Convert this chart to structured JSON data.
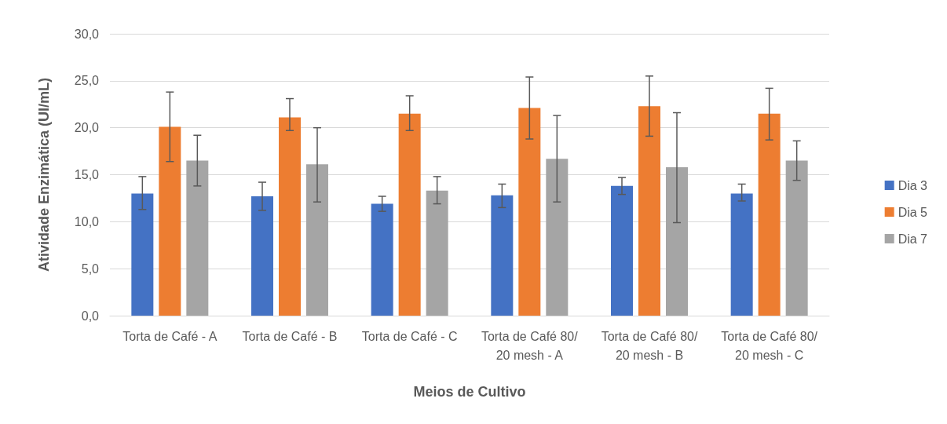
{
  "chart_data": {
    "type": "bar",
    "xlabel": "Meios de Cultivo",
    "ylabel": "Atividade Enzimática (UI/mL)",
    "categories": [
      "Torta de Café - A",
      "Torta de Café - B",
      "Torta de Café - C",
      "Torta de Café 80/20 mesh - A",
      "Torta de Café 80/20 mesh - B",
      "Torta de Café 80/20 mesh - C"
    ],
    "series": [
      {
        "name": "Dia 3",
        "color": "#4472c4",
        "values": [
          13.0,
          12.7,
          11.9,
          12.8,
          13.8,
          13.0
        ],
        "errors": [
          [
            11.3,
            14.8
          ],
          [
            11.2,
            14.2
          ],
          [
            11.1,
            12.7
          ],
          [
            11.5,
            14.0
          ],
          [
            12.9,
            14.7
          ],
          [
            12.2,
            14.0
          ]
        ]
      },
      {
        "name": "Dia 5",
        "color": "#ed7d31",
        "values": [
          20.1,
          21.1,
          21.5,
          22.1,
          22.3,
          21.5
        ],
        "errors": [
          [
            16.4,
            23.8
          ],
          [
            19.7,
            23.1
          ],
          [
            19.7,
            23.4
          ],
          [
            18.8,
            25.4
          ],
          [
            19.1,
            25.5
          ],
          [
            18.7,
            24.2
          ]
        ]
      },
      {
        "name": "Dia 7",
        "color": "#a5a5a5",
        "values": [
          16.5,
          16.1,
          13.3,
          16.7,
          15.8,
          16.5
        ],
        "errors": [
          [
            13.8,
            19.2
          ],
          [
            12.1,
            20.0
          ],
          [
            11.9,
            14.8
          ],
          [
            12.1,
            21.3
          ],
          [
            9.9,
            21.6
          ],
          [
            14.4,
            18.6
          ]
        ]
      }
    ],
    "ylim": [
      0,
      30
    ],
    "yticks": [
      {
        "value": 0,
        "label": "0,0"
      },
      {
        "value": 5,
        "label": "5,0"
      },
      {
        "value": 10,
        "label": "10,0"
      },
      {
        "value": 15,
        "label": "15,0"
      },
      {
        "value": 20,
        "label": "20,0"
      },
      {
        "value": 25,
        "label": "25,0"
      },
      {
        "value": 30,
        "label": "30,0"
      }
    ],
    "grid": "y",
    "legend": "right"
  }
}
